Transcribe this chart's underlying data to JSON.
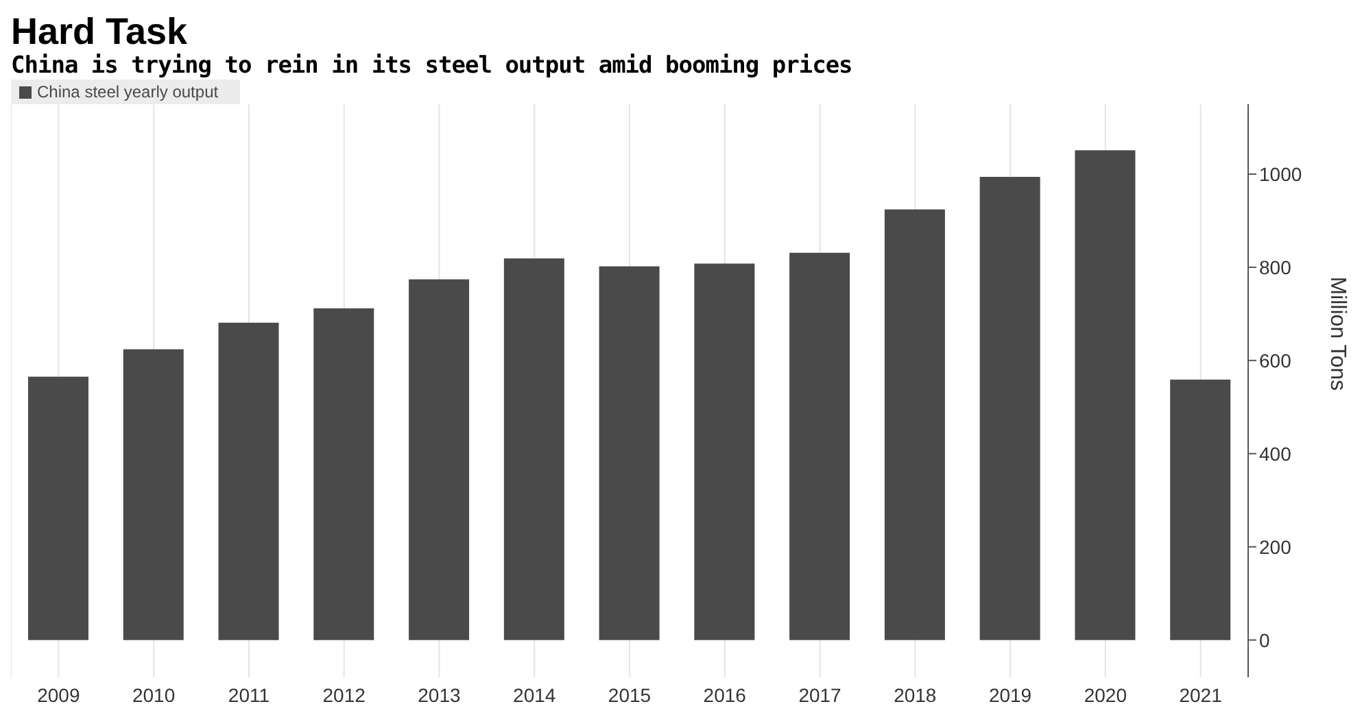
{
  "chart_data": {
    "type": "bar",
    "title": "Hard Task",
    "subtitle": "China is trying to rein in its steel output amid booming prices",
    "y2label": "Million Tons",
    "categories": [
      "2009",
      "2010",
      "2011",
      "2012",
      "2013",
      "2014",
      "2015",
      "2016",
      "2017",
      "2018",
      "2019",
      "2020",
      "2021"
    ],
    "series": [
      {
        "name": "China steel yearly output",
        "color": "#4a4a4a",
        "axis": "y2",
        "values": [
          565,
          624,
          681,
          712,
          774,
          819,
          802,
          808,
          831,
          924,
          994,
          1051,
          559
        ]
      }
    ],
    "y2lim": [
      -80,
      1150
    ],
    "y2ticks": [
      0,
      200,
      400,
      600,
      800,
      1000
    ],
    "grid": "x",
    "legend": "top left"
  }
}
